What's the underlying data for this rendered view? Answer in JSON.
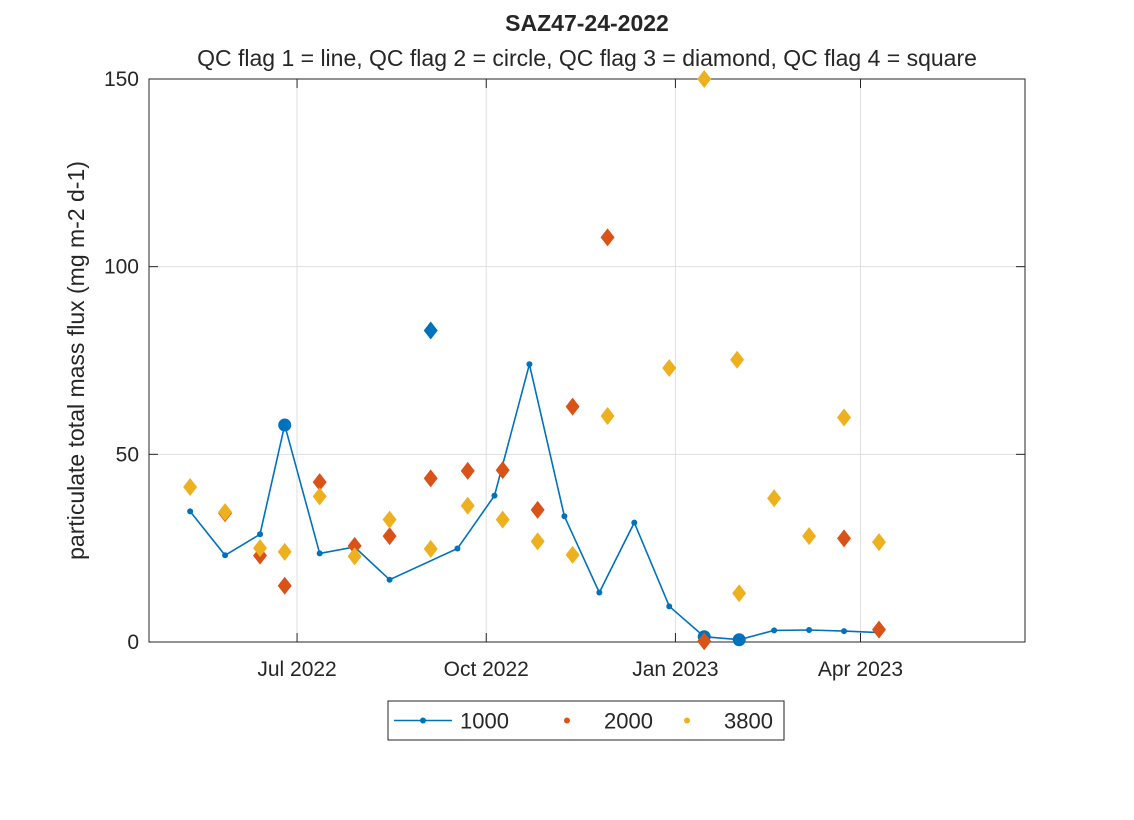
{
  "chart_data": {
    "type": "line",
    "title": "SAZ47-24-2022",
    "subtitle": "QC flag 1 = line, QC flag 2 = circle, QC flag 3 = diamond, QC flag 4 = square",
    "xlabel": "",
    "ylabel": "particulate total mass flux (mg m-2 d-1)",
    "ylim": [
      0,
      150
    ],
    "yticks": [
      0,
      50,
      100,
      150
    ],
    "xlim": [
      "2022-04-20",
      "2023-06-20"
    ],
    "xticks": [
      {
        "date": "2022-07-01",
        "label": "Jul 2022"
      },
      {
        "date": "2022-10-01",
        "label": "Oct 2022"
      },
      {
        "date": "2023-01-01",
        "label": "Jan 2023"
      },
      {
        "date": "2023-04-01",
        "label": "Apr 2023"
      }
    ],
    "grid": true,
    "legend_position": "bottom",
    "series": [
      {
        "name": "1000",
        "color": "#0072BD",
        "points": [
          {
            "x": "2022-05-10",
            "y": 34.8,
            "flag": 1
          },
          {
            "x": "2022-05-27",
            "y": 23.1,
            "flag": 1
          },
          {
            "x": "2022-06-13",
            "y": 28.7,
            "flag": 1
          },
          {
            "x": "2022-06-25",
            "y": 57.8,
            "flag": 2
          },
          {
            "x": "2022-07-12",
            "y": 23.6,
            "flag": 1
          },
          {
            "x": "2022-07-29",
            "y": 25.3,
            "flag": 1
          },
          {
            "x": "2022-08-15",
            "y": 16.6,
            "flag": 1
          },
          {
            "x": "2022-09-17",
            "y": 24.9,
            "flag": 1
          },
          {
            "x": "2022-10-05",
            "y": 39.0,
            "flag": 1
          },
          {
            "x": "2022-10-22",
            "y": 74.0,
            "flag": 1
          },
          {
            "x": "2022-11-08",
            "y": 33.5,
            "flag": 1
          },
          {
            "x": "2022-11-25",
            "y": 13.2,
            "flag": 1
          },
          {
            "x": "2022-12-12",
            "y": 31.8,
            "flag": 1
          },
          {
            "x": "2022-12-29",
            "y": 9.5,
            "flag": 1
          },
          {
            "x": "2023-01-15",
            "y": 1.4,
            "flag": 2
          },
          {
            "x": "2023-02-01",
            "y": 0.6,
            "flag": 2
          },
          {
            "x": "2023-02-18",
            "y": 3.1,
            "flag": 1
          },
          {
            "x": "2023-03-07",
            "y": 3.2,
            "flag": 1
          },
          {
            "x": "2023-03-24",
            "y": 2.9,
            "flag": 1
          },
          {
            "x": "2023-04-10",
            "y": 2.5,
            "flag": 1
          },
          {
            "x": "2022-09-04",
            "y": 83.0,
            "flag": 3
          }
        ]
      },
      {
        "name": "2000",
        "color": "#D95319",
        "points": [
          {
            "x": "2022-05-27",
            "y": 34.3,
            "flag": 3
          },
          {
            "x": "2022-06-13",
            "y": 23.0,
            "flag": 3
          },
          {
            "x": "2022-06-25",
            "y": 15.0,
            "flag": 3
          },
          {
            "x": "2022-07-12",
            "y": 42.6,
            "flag": 3
          },
          {
            "x": "2022-07-29",
            "y": 25.6,
            "flag": 3
          },
          {
            "x": "2022-08-15",
            "y": 28.2,
            "flag": 3
          },
          {
            "x": "2022-09-04",
            "y": 43.6,
            "flag": 3
          },
          {
            "x": "2022-09-22",
            "y": 45.6,
            "flag": 3
          },
          {
            "x": "2022-10-09",
            "y": 45.8,
            "flag": 3
          },
          {
            "x": "2022-10-26",
            "y": 35.2,
            "flag": 3
          },
          {
            "x": "2022-11-12",
            "y": 62.7,
            "flag": 3
          },
          {
            "x": "2022-11-29",
            "y": 107.8,
            "flag": 3
          },
          {
            "x": "2023-01-15",
            "y": 0.2,
            "flag": 3
          },
          {
            "x": "2023-03-24",
            "y": 27.6,
            "flag": 3
          },
          {
            "x": "2023-04-10",
            "y": 3.3,
            "flag": 3
          }
        ]
      },
      {
        "name": "3800",
        "color": "#EDB120",
        "points": [
          {
            "x": "2022-05-10",
            "y": 41.3,
            "flag": 3
          },
          {
            "x": "2022-05-27",
            "y": 34.6,
            "flag": 3
          },
          {
            "x": "2022-06-13",
            "y": 25.0,
            "flag": 3
          },
          {
            "x": "2022-06-25",
            "y": 24.0,
            "flag": 3
          },
          {
            "x": "2022-07-12",
            "y": 38.8,
            "flag": 3
          },
          {
            "x": "2022-07-29",
            "y": 22.8,
            "flag": 3
          },
          {
            "x": "2022-08-15",
            "y": 32.6,
            "flag": 3
          },
          {
            "x": "2022-09-04",
            "y": 24.8,
            "flag": 3
          },
          {
            "x": "2022-09-22",
            "y": 36.3,
            "flag": 3
          },
          {
            "x": "2022-10-09",
            "y": 32.6,
            "flag": 3
          },
          {
            "x": "2022-10-26",
            "y": 26.8,
            "flag": 3
          },
          {
            "x": "2022-11-12",
            "y": 23.2,
            "flag": 3
          },
          {
            "x": "2022-11-29",
            "y": 60.2,
            "flag": 3
          },
          {
            "x": "2022-12-29",
            "y": 73.0,
            "flag": 3
          },
          {
            "x": "2023-01-15",
            "y": 150.0,
            "flag": 3
          },
          {
            "x": "2023-01-31",
            "y": 75.2,
            "flag": 3
          },
          {
            "x": "2023-02-01",
            "y": 13.0,
            "flag": 3
          },
          {
            "x": "2023-02-18",
            "y": 38.3,
            "flag": 3
          },
          {
            "x": "2023-03-07",
            "y": 28.2,
            "flag": 3
          },
          {
            "x": "2023-03-24",
            "y": 59.8,
            "flag": 3
          },
          {
            "x": "2023-04-10",
            "y": 26.6,
            "flag": 3
          }
        ]
      }
    ]
  }
}
